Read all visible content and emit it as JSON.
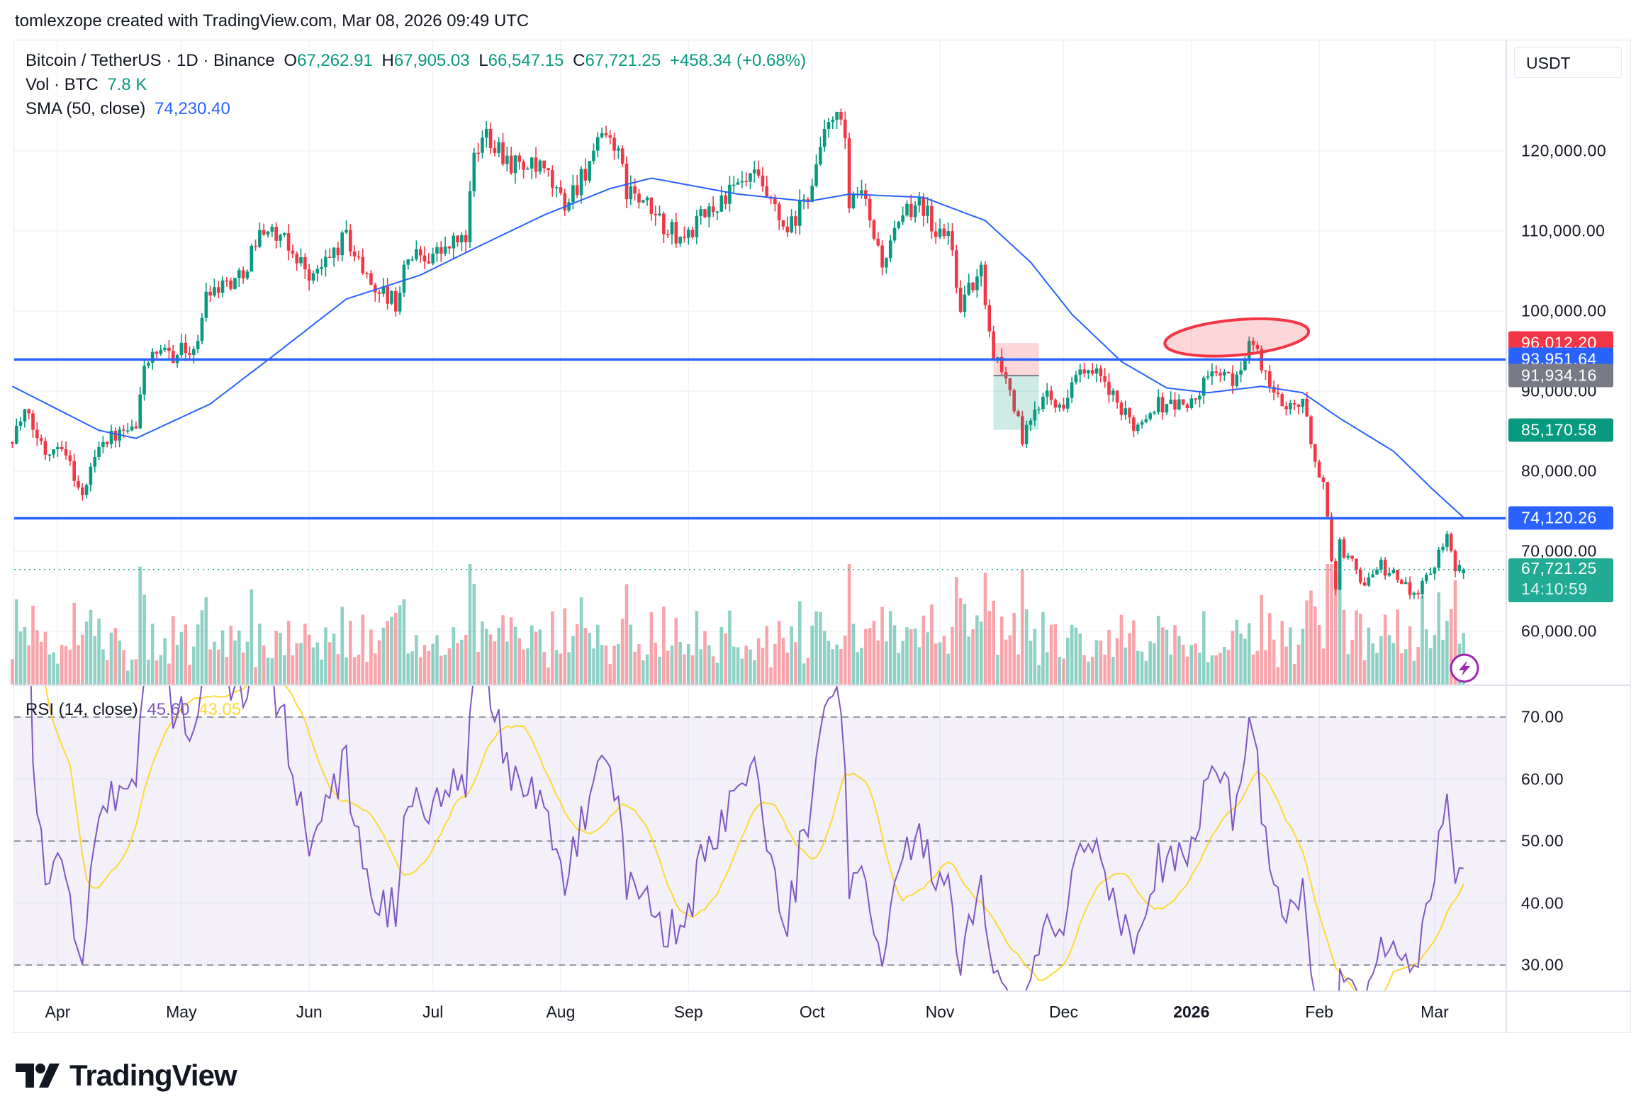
{
  "credit": "tomlexzope created with TradingView.com, Mar 08, 2026 09:49 UTC",
  "legend": {
    "symbol": "Bitcoin / TetherUS · 1D · Binance",
    "o_label": "O",
    "o": "67,262.91",
    "h_label": "H",
    "h": "67,905.03",
    "l_label": "L",
    "l": "66,547.15",
    "c_label": "C",
    "c": "67,721.25",
    "change": "+458.34 (+0.68%)",
    "vol_label": "Vol · BTC",
    "vol": "7.8 K",
    "sma_label": "SMA (50, close)",
    "sma": "74,230.40",
    "rsi_label": "RSI (14, close)",
    "rsi": "45.60",
    "rsi_ma": "43.05"
  },
  "currency": "USDT",
  "logo_text": "TradingView",
  "countdown": "14:10:59",
  "colors": {
    "up": "#089981",
    "down": "#f23645",
    "sma": "#2962ff",
    "rsi": "#7e57c2",
    "rsi_ma": "#fdd835",
    "hline": "#2962ff",
    "annotation": "#f23645"
  },
  "chart_data": {
    "type": "candlestick",
    "interval": "1D",
    "x_range": [
      "2025-03-21",
      "2026-03-08"
    ],
    "ylim": [
      52000,
      128000
    ],
    "grid": true,
    "price_ticks": [
      {
        "value": 120000,
        "label": "120,000.00"
      },
      {
        "value": 110000,
        "label": "110,000.00"
      },
      {
        "value": 100000,
        "label": "100,000.00"
      },
      {
        "value": 90000,
        "label": "90,000.00"
      },
      {
        "value": 80000,
        "label": "80,000.00"
      },
      {
        "value": 70000,
        "label": "70,000.00"
      },
      {
        "value": 60000,
        "label": "60,000.00"
      }
    ],
    "time_ticks": [
      {
        "date": "2025-04-01",
        "label": "Apr"
      },
      {
        "date": "2025-05-01",
        "label": "May"
      },
      {
        "date": "2025-06-01",
        "label": "Jun"
      },
      {
        "date": "2025-07-01",
        "label": "Jul"
      },
      {
        "date": "2025-08-01",
        "label": "Aug"
      },
      {
        "date": "2025-09-01",
        "label": "Sep"
      },
      {
        "date": "2025-10-01",
        "label": "Oct"
      },
      {
        "date": "2025-11-01",
        "label": "Nov"
      },
      {
        "date": "2025-12-01",
        "label": "Dec"
      },
      {
        "date": "2026-01-01",
        "label": "2026",
        "bold": true
      },
      {
        "date": "2026-02-01",
        "label": "Feb"
      },
      {
        "date": "2026-03-01",
        "label": "Mar"
      }
    ],
    "close_path": [
      [
        "2025-03-21",
        84500
      ],
      [
        "2025-03-24",
        87100
      ],
      [
        "2025-03-29",
        82500
      ],
      [
        "2025-04-02",
        83800
      ],
      [
        "2025-04-07",
        76600
      ],
      [
        "2025-04-11",
        83800
      ],
      [
        "2025-04-20",
        85100
      ],
      [
        "2025-04-22",
        93700
      ],
      [
        "2025-05-05",
        95600
      ],
      [
        "2025-05-07",
        102800
      ],
      [
        "2025-05-15",
        104100
      ],
      [
        "2025-05-21",
        110700
      ],
      [
        "2025-05-28",
        107400
      ],
      [
        "2025-06-02",
        104100
      ],
      [
        "2025-06-10",
        109400
      ],
      [
        "2025-06-15",
        104100
      ],
      [
        "2025-06-22",
        100900
      ],
      [
        "2025-06-25",
        106800
      ],
      [
        "2025-07-03",
        107400
      ],
      [
        "2025-07-09",
        109400
      ],
      [
        "2025-07-11",
        118600
      ],
      [
        "2025-07-14",
        122500
      ],
      [
        "2025-07-20",
        118600
      ],
      [
        "2025-07-28",
        117200
      ],
      [
        "2025-08-02",
        113300
      ],
      [
        "2025-08-08",
        118600
      ],
      [
        "2025-08-13",
        122500
      ],
      [
        "2025-08-17",
        115300
      ],
      [
        "2025-08-25",
        111300
      ],
      [
        "2025-08-30",
        108700
      ],
      [
        "2025-09-09",
        114000
      ],
      [
        "2025-09-17",
        116600
      ],
      [
        "2025-09-25",
        109400
      ],
      [
        "2025-09-30",
        114600
      ],
      [
        "2025-10-06",
        125100
      ],
      [
        "2025-10-09",
        121200
      ],
      [
        "2025-10-10",
        112700
      ],
      [
        "2025-10-13",
        114600
      ],
      [
        "2025-10-18",
        106100
      ],
      [
        "2025-10-23",
        111300
      ],
      [
        "2025-10-27",
        114600
      ],
      [
        "2025-10-31",
        109400
      ],
      [
        "2025-11-03",
        110000
      ],
      [
        "2025-11-06",
        100900
      ],
      [
        "2025-11-11",
        104800
      ],
      [
        "2025-11-14",
        95000
      ],
      [
        "2025-11-18",
        90400
      ],
      [
        "2025-11-21",
        83800
      ],
      [
        "2025-11-24",
        87100
      ],
      [
        "2025-11-27",
        91000
      ],
      [
        "2025-12-01",
        87100
      ],
      [
        "2025-12-03",
        92300
      ],
      [
        "2025-12-10",
        91700
      ],
      [
        "2025-12-15",
        87100
      ],
      [
        "2025-12-19",
        85800
      ],
      [
        "2025-12-23",
        88400
      ],
      [
        "2026-01-01",
        88400
      ],
      [
        "2026-01-07",
        93000
      ],
      [
        "2026-01-11",
        90600
      ],
      [
        "2026-01-15",
        96300
      ],
      [
        "2026-01-19",
        92300
      ],
      [
        "2026-01-21",
        89000
      ],
      [
        "2026-01-28",
        88400
      ],
      [
        "2026-01-30",
        83800
      ],
      [
        "2026-02-02",
        77900
      ],
      [
        "2026-02-05",
        65500
      ],
      [
        "2026-02-06",
        70700
      ],
      [
        "2026-02-12",
        66100
      ],
      [
        "2026-02-16",
        68100
      ],
      [
        "2026-02-24",
        64800
      ],
      [
        "2026-02-28",
        67400
      ],
      [
        "2026-03-04",
        72700
      ],
      [
        "2026-03-06",
        68100
      ],
      [
        "2026-03-08",
        67721.25
      ]
    ],
    "last_candle": {
      "date": "2026-03-08",
      "open": 67262.91,
      "high": 67905.03,
      "low": 66547.15,
      "close": 67721.25,
      "volume_btc": "7.8K"
    },
    "sma50_path": [
      [
        "2025-03-21",
        90600
      ],
      [
        "2025-04-11",
        85100
      ],
      [
        "2025-04-20",
        84100
      ],
      [
        "2025-05-08",
        88400
      ],
      [
        "2025-05-23",
        94300
      ],
      [
        "2025-06-10",
        101500
      ],
      [
        "2025-06-28",
        104500
      ],
      [
        "2025-07-11",
        107800
      ],
      [
        "2025-07-28",
        112000
      ],
      [
        "2025-08-13",
        115300
      ],
      [
        "2025-08-23",
        116600
      ],
      [
        "2025-09-13",
        114600
      ],
      [
        "2025-09-30",
        113700
      ],
      [
        "2025-10-10",
        114600
      ],
      [
        "2025-10-28",
        114200
      ],
      [
        "2025-11-12",
        111300
      ],
      [
        "2025-11-23",
        106100
      ],
      [
        "2025-12-03",
        99600
      ],
      [
        "2025-12-15",
        93700
      ],
      [
        "2025-12-26",
        90400
      ],
      [
        "2026-01-05",
        89800
      ],
      [
        "2026-01-18",
        90600
      ],
      [
        "2026-01-28",
        89800
      ],
      [
        "2026-02-06",
        86600
      ],
      [
        "2026-02-19",
        82500
      ],
      [
        "2026-03-01",
        77500
      ],
      [
        "2026-03-08",
        74230.4
      ]
    ],
    "horizontal_lines": [
      93951.64,
      74120.26
    ],
    "position_box": {
      "start": "2025-11-14",
      "end": "2025-11-25",
      "target": 96012.2,
      "entry": 91934.16,
      "stop": 85170.58
    },
    "ellipse": {
      "center_date": "2026-01-12",
      "center_price": 96700,
      "half_width_days": 17.5,
      "half_height_price": 2200
    },
    "price_labels": [
      {
        "value": 96012.2,
        "text": "96,012.20",
        "color": "#f23645"
      },
      {
        "value": 93951.64,
        "text": "93,951.64",
        "color": "#2962ff"
      },
      {
        "value": 91934.16,
        "text": "91,934.16",
        "color": "#787b86"
      },
      {
        "value": 85170.58,
        "text": "85,170.58",
        "color": "#089981"
      },
      {
        "value": 74120.26,
        "text": "74,120.26",
        "color": "#2962ff"
      },
      {
        "value": 67721.25,
        "text": "67,721.25",
        "color": "#22ab94",
        "countdown": true
      }
    ],
    "rsi": {
      "period": 14,
      "ma_period": 14,
      "upper": 70,
      "middle": 50,
      "lower": 30,
      "last": 45.6,
      "ma_last": 43.05,
      "ticks": [
        {
          "value": 70,
          "label": "70.00"
        },
        {
          "value": 60,
          "label": "60.00"
        },
        {
          "value": 50,
          "label": "50.00"
        },
        {
          "value": 40,
          "label": "40.00"
        },
        {
          "value": 30,
          "label": "30.00"
        }
      ]
    }
  }
}
